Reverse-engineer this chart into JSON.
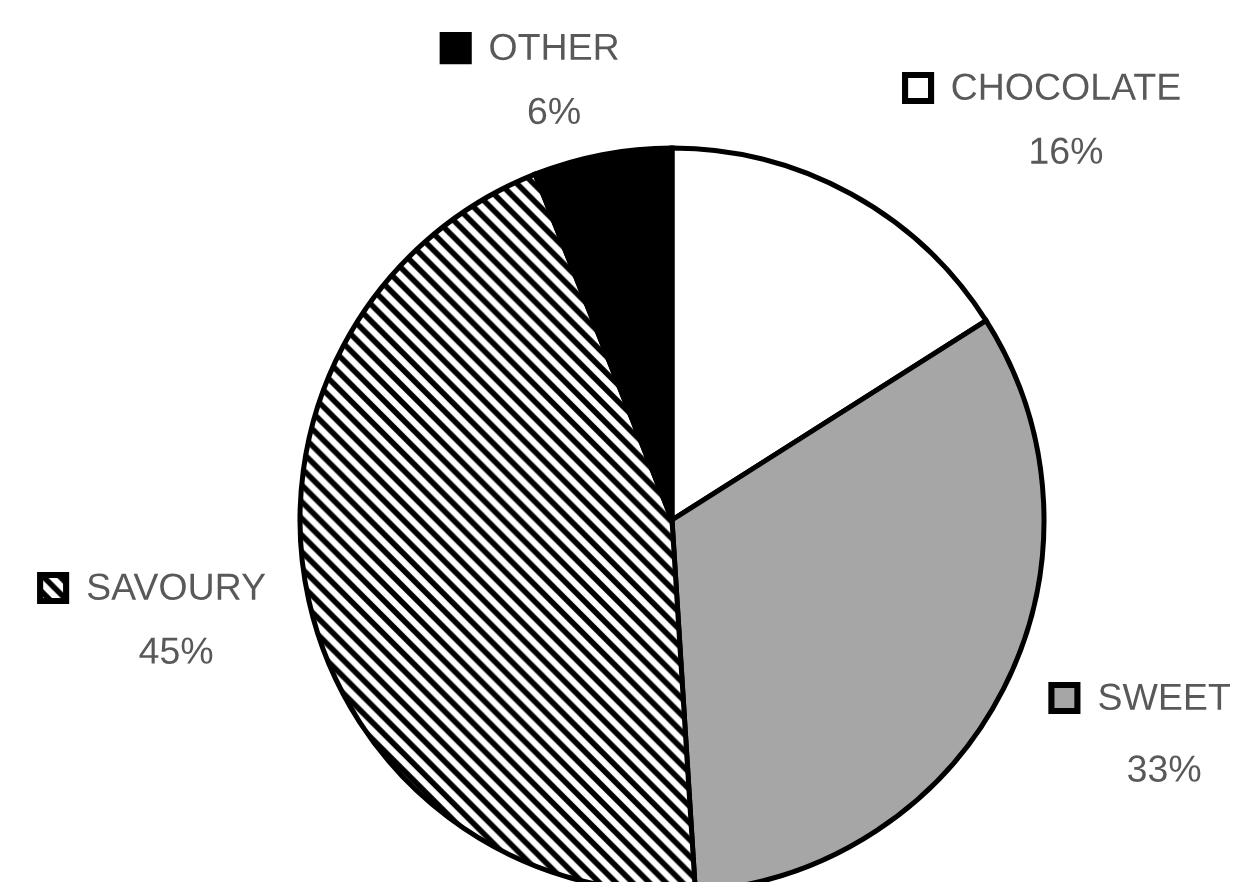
{
  "chart_data": {
    "type": "pie",
    "categories": [
      "CHOCOLATE",
      "SWEET",
      "SAVOURY",
      "OTHER"
    ],
    "values": [
      16,
      33,
      45,
      6
    ],
    "colors": [
      "#ffffff",
      "#a6a6a6",
      "#000000",
      "#000000"
    ],
    "value_labels": [
      "16%",
      "33%",
      "45%",
      "6%"
    ],
    "legend": "top"
  }
}
